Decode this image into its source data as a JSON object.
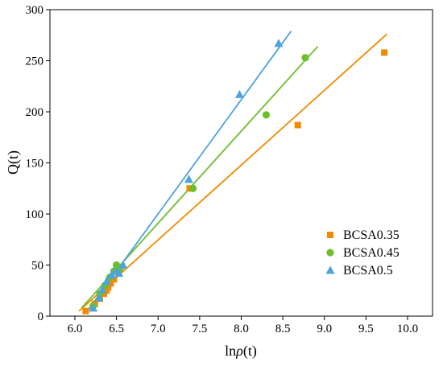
{
  "chart_data": {
    "type": "scatter",
    "title": "",
    "xlabel_prefix": "ln",
    "xlabel_symbol": "ρ",
    "xlabel_suffix": "(t)",
    "ylabel": "Q(t)",
    "xlim": [
      5.7,
      10.3
    ],
    "ylim": [
      0,
      300
    ],
    "xticks": [
      6.0,
      6.5,
      7.0,
      7.5,
      8.0,
      8.5,
      9.0,
      9.5,
      10.0
    ],
    "xtick_labels": [
      "6.0",
      "6.5",
      "7.0",
      "7.5",
      "8.0",
      "8.5",
      "9.0",
      "9.5",
      "10.0"
    ],
    "yticks": [
      0,
      50,
      100,
      150,
      200,
      250,
      300
    ],
    "ytick_labels": [
      "0",
      "50",
      "100",
      "150",
      "200",
      "250",
      "300"
    ],
    "grid": false,
    "legend_position": "lower-right",
    "series": [
      {
        "name": "BCSA0.35",
        "marker": "square",
        "color": "#F08A00",
        "points": [
          [
            6.13,
            5
          ],
          [
            6.24,
            12
          ],
          [
            6.3,
            17
          ],
          [
            6.35,
            22
          ],
          [
            6.38,
            25
          ],
          [
            6.4,
            28
          ],
          [
            6.43,
            32
          ],
          [
            6.47,
            36
          ],
          [
            7.38,
            125
          ],
          [
            8.68,
            187
          ],
          [
            9.72,
            258
          ]
        ],
        "fit": [
          [
            6.05,
            5
          ],
          [
            9.75,
            276
          ]
        ]
      },
      {
        "name": "BCSA0.45",
        "marker": "circle",
        "color": "#6DBE2C",
        "points": [
          [
            6.22,
            10
          ],
          [
            6.3,
            22
          ],
          [
            6.36,
            30
          ],
          [
            6.42,
            38
          ],
          [
            6.47,
            44
          ],
          [
            6.5,
            50
          ],
          [
            6.54,
            46
          ],
          [
            7.42,
            125
          ],
          [
            8.3,
            197
          ],
          [
            8.77,
            253
          ]
        ],
        "fit": [
          [
            6.08,
            8
          ],
          [
            8.92,
            264
          ]
        ]
      },
      {
        "name": "BCSA0.5",
        "marker": "triangle",
        "color": "#4DA3DC",
        "points": [
          [
            6.22,
            8
          ],
          [
            6.29,
            18
          ],
          [
            6.33,
            26
          ],
          [
            6.38,
            34
          ],
          [
            6.44,
            40
          ],
          [
            6.49,
            44
          ],
          [
            6.53,
            42
          ],
          [
            6.58,
            50
          ],
          [
            7.37,
            134
          ],
          [
            7.98,
            217
          ],
          [
            8.45,
            267
          ]
        ],
        "fit": [
          [
            6.15,
            5
          ],
          [
            8.6,
            279
          ]
        ]
      }
    ]
  }
}
